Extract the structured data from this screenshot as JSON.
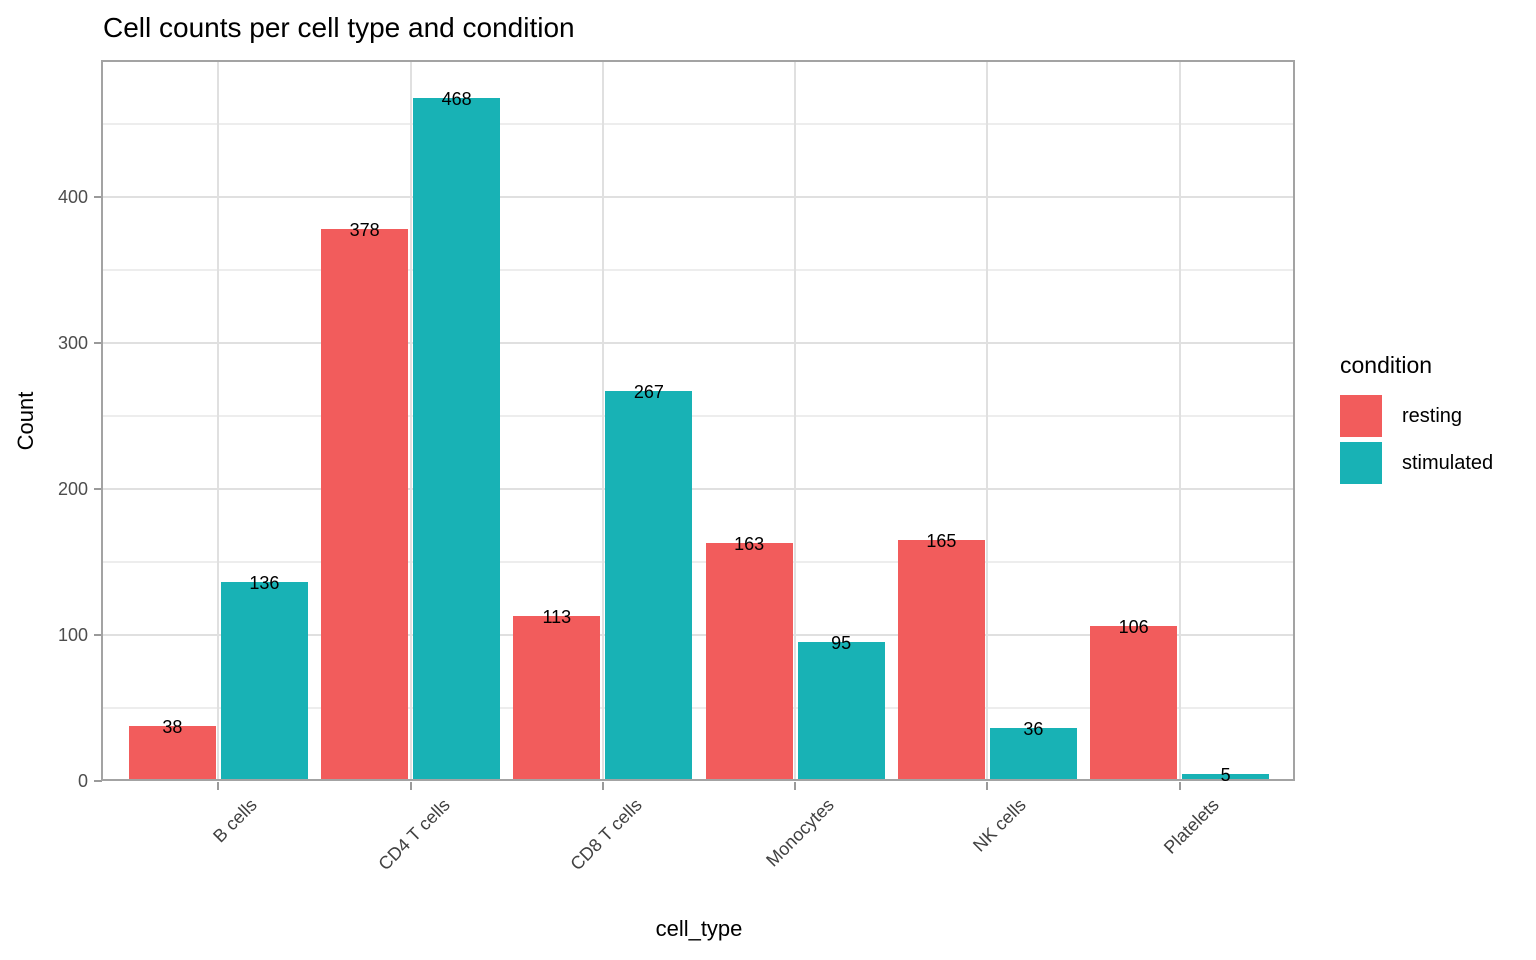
{
  "chart_data": {
    "type": "bar",
    "title": "Cell counts per cell type and condition",
    "xlabel": "cell_type",
    "ylabel": "Count",
    "categories": [
      "B cells",
      "CD4 T cells",
      "CD8 T cells",
      "Monocytes",
      "NK cells",
      "Platelets"
    ],
    "series": [
      {
        "name": "resting",
        "color": "#F25C5C",
        "values": [
          38,
          378,
          113,
          163,
          165,
          106
        ]
      },
      {
        "name": "stimulated",
        "color": "#18B2B5",
        "values": [
          136,
          468,
          267,
          95,
          36,
          5
        ]
      }
    ],
    "bar_value_labels_shown": true,
    "y_ticks": [
      0,
      100,
      200,
      300,
      400
    ],
    "y_minor_gridlines": [
      50,
      150,
      250,
      350,
      450
    ],
    "ylim": [
      0,
      492.5
    ],
    "grid": "major-and-minor-horizontal, major-vertical-at-categories",
    "legend": {
      "title": "condition",
      "position": "right"
    },
    "colors": {
      "grid_major": "#e0e0e0",
      "grid_minor": "#ededed",
      "panel_border": "#a3a3a3",
      "axis_text": "#4d4d4d",
      "background": "#ffffff"
    }
  }
}
